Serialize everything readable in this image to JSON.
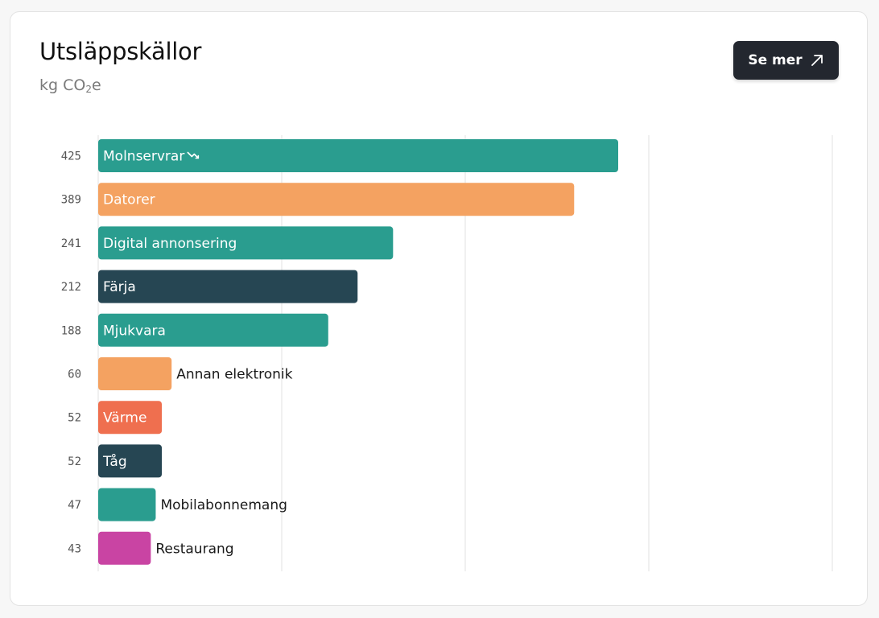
{
  "header": {
    "title": "Utsläppskällor",
    "subtitle_prefix": "kg CO",
    "subtitle_sub": "2",
    "subtitle_suffix": "e"
  },
  "button": {
    "label": "Se mer",
    "icon": "arrow-up-right-icon"
  },
  "colors": {
    "teal": "#2a9d8f",
    "orange": "#f4a261",
    "navy": "#264653",
    "coral": "#ef6f4f",
    "magenta": "#c944a3",
    "grid": "#ececec"
  },
  "chart_data": {
    "type": "bar",
    "orientation": "horizontal",
    "title": "Utsläppskällor",
    "unit": "kg CO2e",
    "grid": true,
    "xlim": [
      0,
      600
    ],
    "categories": [
      "Molnservrar",
      "Datorer",
      "Digital annonsering",
      "Färja",
      "Mjukvara",
      "Annan elektronik",
      "Värme",
      "Tåg",
      "Mobilabonnemang",
      "Restaurang"
    ],
    "values": [
      425,
      389,
      241,
      212,
      188,
      60,
      52,
      52,
      47,
      43
    ],
    "value_labels": [
      "425",
      "389",
      "241",
      "212",
      "188",
      "60",
      "52",
      "52",
      "47",
      "43"
    ],
    "bar_colors": [
      "#2a9d8f",
      "#f4a261",
      "#2a9d8f",
      "#264653",
      "#2a9d8f",
      "#f4a261",
      "#ef6f4f",
      "#264653",
      "#2a9d8f",
      "#c944a3"
    ],
    "annotations": [
      {
        "category": "Molnservrar",
        "icon": "trend-down-icon"
      }
    ]
  }
}
